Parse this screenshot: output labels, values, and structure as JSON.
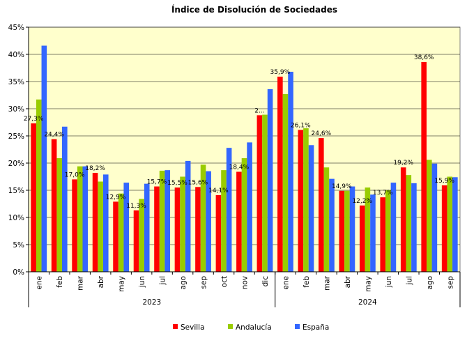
{
  "chart_data": {
    "type": "bar",
    "title": "Índice de Disolución de Sociedades",
    "xlabel": "",
    "ylabel": "",
    "ylim": [
      0,
      45
    ],
    "y_ticks": [
      "0%",
      "5%",
      "10%",
      "15%",
      "20%",
      "25%",
      "30%",
      "35%",
      "40%",
      "45%"
    ],
    "grid": true,
    "legend_position": "bottom-center",
    "year_groups": [
      {
        "label": "2023",
        "count": 12
      },
      {
        "label": "2024",
        "count": 9
      }
    ],
    "categories": [
      "ene",
      "feb",
      "mar",
      "abr",
      "may",
      "jun",
      "jul",
      "ago",
      "sep",
      "oct",
      "nov",
      "dic",
      "ene",
      "feb",
      "mar",
      "abr",
      "may",
      "jun",
      "jul",
      "ago",
      "sep"
    ],
    "series": [
      {
        "name": "Sevilla",
        "color": "#ff0000",
        "values": [
          27.3,
          24.4,
          17.0,
          18.2,
          12.9,
          11.3,
          15.7,
          15.5,
          15.6,
          14.1,
          18.4,
          28.8,
          35.9,
          26.1,
          24.6,
          14.9,
          12.2,
          13.7,
          19.2,
          38.6,
          15.9
        ]
      },
      {
        "name": "Andalucía",
        "color": "#99cc00",
        "values": [
          31.7,
          20.9,
          19.4,
          16.6,
          14.4,
          13.4,
          18.6,
          17.5,
          19.7,
          18.7,
          20.9,
          28.9,
          32.7,
          26.4,
          19.2,
          14.9,
          15.5,
          15.0,
          17.8,
          20.6,
          17.5
        ]
      },
      {
        "name": "España",
        "color": "#3366ff",
        "values": [
          41.6,
          26.7,
          19.4,
          17.9,
          16.4,
          16.2,
          18.7,
          20.4,
          18.5,
          22.8,
          23.8,
          33.6,
          36.8,
          23.3,
          17.1,
          15.7,
          14.2,
          16.4,
          16.3,
          19.9,
          17.4
        ]
      }
    ],
    "data_labels": [
      "27,3%",
      "24,4%",
      "17,0%",
      "18,2%",
      "12,9%",
      "11,3%",
      "15,7%",
      "15,5%",
      "15,6%",
      "14,1%",
      "18,4%",
      "2...",
      "35,9%",
      "26,1%",
      "24,6%",
      "14,9%",
      "12,2%",
      "13,7%",
      "19,2%",
      "38,6%",
      "15,9%"
    ],
    "plot_background": "#ffffcc"
  }
}
